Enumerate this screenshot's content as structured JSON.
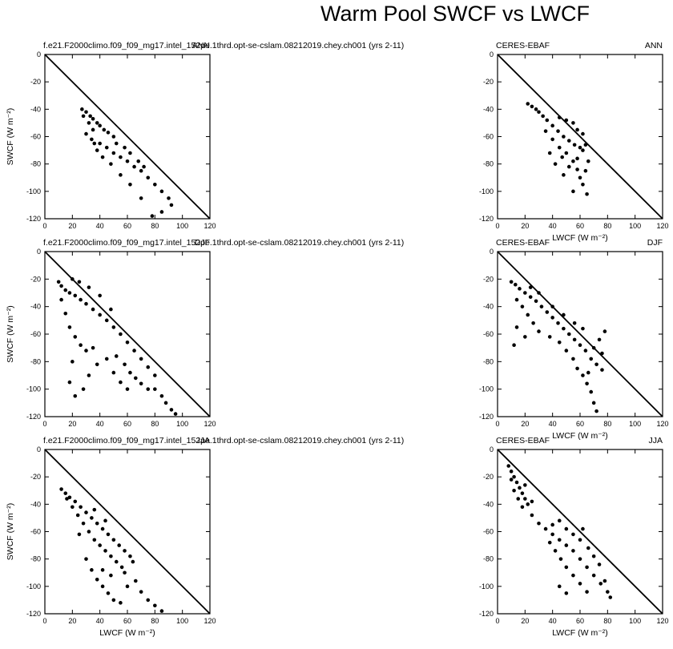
{
  "figure": {
    "title": "Warm Pool SWCF vs LWCF"
  },
  "axes": {
    "xlabel": "LWCF (W m⁻²)",
    "ylabel": "SWCF (W m⁻²)",
    "xlim": [
      0,
      120
    ],
    "ylim": [
      -120,
      0
    ],
    "xticks": [
      "0",
      "20",
      "40",
      "60",
      "80",
      "100",
      "120"
    ],
    "yticks": [
      "0",
      "-20",
      "-40",
      "-60",
      "-80",
      "-100",
      "-120"
    ],
    "reference_line": "y = -x"
  },
  "chart_data": [
    {
      "type": "scatter",
      "left_label": "f.e21.F2000climo.f09_f09_mg17.intel_152pe.1thrd.opt-se-cslam.08212019.chey.ch001 (yrs 2-11)",
      "right_label": "ANN",
      "xlim": [
        0,
        120
      ],
      "ylim": [
        -120,
        0
      ],
      "points": [
        [
          27,
          -40
        ],
        [
          30,
          -42
        ],
        [
          33,
          -45
        ],
        [
          35,
          -47
        ],
        [
          38,
          -50
        ],
        [
          40,
          -52
        ],
        [
          43,
          -55
        ],
        [
          46,
          -57
        ],
        [
          50,
          -60
        ],
        [
          28,
          -45
        ],
        [
          32,
          -50
        ],
        [
          35,
          -55
        ],
        [
          30,
          -58
        ],
        [
          34,
          -62
        ],
        [
          40,
          -65
        ],
        [
          45,
          -68
        ],
        [
          50,
          -72
        ],
        [
          55,
          -75
        ],
        [
          60,
          -78
        ],
        [
          65,
          -82
        ],
        [
          70,
          -85
        ],
        [
          75,
          -90
        ],
        [
          80,
          -95
        ],
        [
          85,
          -100
        ],
        [
          90,
          -105
        ],
        [
          92,
          -110
        ],
        [
          85,
          -115
        ],
        [
          78,
          -118
        ],
        [
          70,
          -105
        ],
        [
          62,
          -95
        ],
        [
          55,
          -88
        ],
        [
          48,
          -80
        ],
        [
          42,
          -75
        ],
        [
          38,
          -70
        ],
        [
          36,
          -65
        ],
        [
          52,
          -65
        ],
        [
          58,
          -68
        ],
        [
          62,
          -72
        ],
        [
          68,
          -78
        ],
        [
          72,
          -82
        ]
      ]
    },
    {
      "type": "scatter",
      "left_label": "CERES-EBAF",
      "right_label": "ANN",
      "xlim": [
        0,
        120
      ],
      "ylim": [
        -120,
        0
      ],
      "points": [
        [
          22,
          -36
        ],
        [
          25,
          -38
        ],
        [
          28,
          -40
        ],
        [
          30,
          -42
        ],
        [
          33,
          -45
        ],
        [
          36,
          -48
        ],
        [
          40,
          -52
        ],
        [
          44,
          -56
        ],
        [
          48,
          -60
        ],
        [
          52,
          -63
        ],
        [
          56,
          -66
        ],
        [
          60,
          -68
        ],
        [
          64,
          -66
        ],
        [
          62,
          -58
        ],
        [
          58,
          -55
        ],
        [
          55,
          -50
        ],
        [
          50,
          -48
        ],
        [
          45,
          -46
        ],
        [
          35,
          -56
        ],
        [
          40,
          -62
        ],
        [
          45,
          -68
        ],
        [
          50,
          -72
        ],
        [
          55,
          -78
        ],
        [
          58,
          -84
        ],
        [
          60,
          -90
        ],
        [
          62,
          -95
        ],
        [
          65,
          -102
        ],
        [
          55,
          -100
        ],
        [
          48,
          -88
        ],
        [
          42,
          -80
        ],
        [
          38,
          -72
        ],
        [
          66,
          -78
        ],
        [
          64,
          -85
        ],
        [
          62,
          -70
        ],
        [
          58,
          -76
        ],
        [
          52,
          -82
        ],
        [
          47,
          -75
        ]
      ]
    },
    {
      "type": "scatter",
      "left_label": "f.e21.F2000climo.f09_f09_mg17.intel_152pe.1thrd.opt-se-cslam.08212019.chey.ch001 (yrs 2-11)",
      "right_label": "DJF",
      "xlim": [
        0,
        120
      ],
      "ylim": [
        -120,
        0
      ],
      "points": [
        [
          10,
          -22
        ],
        [
          12,
          -25
        ],
        [
          15,
          -28
        ],
        [
          18,
          -30
        ],
        [
          22,
          -32
        ],
        [
          26,
          -35
        ],
        [
          30,
          -38
        ],
        [
          35,
          -42
        ],
        [
          40,
          -46
        ],
        [
          45,
          -50
        ],
        [
          50,
          -55
        ],
        [
          55,
          -60
        ],
        [
          60,
          -66
        ],
        [
          65,
          -72
        ],
        [
          70,
          -78
        ],
        [
          75,
          -84
        ],
        [
          80,
          -90
        ],
        [
          12,
          -35
        ],
        [
          15,
          -45
        ],
        [
          18,
          -55
        ],
        [
          22,
          -62
        ],
        [
          26,
          -68
        ],
        [
          30,
          -72
        ],
        [
          35,
          -70
        ],
        [
          20,
          -80
        ],
        [
          18,
          -95
        ],
        [
          22,
          -105
        ],
        [
          28,
          -100
        ],
        [
          32,
          -90
        ],
        [
          38,
          -82
        ],
        [
          45,
          -78
        ],
        [
          52,
          -76
        ],
        [
          58,
          -82
        ],
        [
          62,
          -88
        ],
        [
          66,
          -92
        ],
        [
          70,
          -96
        ],
        [
          75,
          -100
        ],
        [
          80,
          -100
        ],
        [
          85,
          -105
        ],
        [
          88,
          -110
        ],
        [
          92,
          -115
        ],
        [
          95,
          -118
        ],
        [
          60,
          -100
        ],
        [
          55,
          -95
        ],
        [
          50,
          -88
        ],
        [
          20,
          -20
        ],
        [
          25,
          -22
        ],
        [
          32,
          -26
        ],
        [
          40,
          -32
        ],
        [
          48,
          -42
        ]
      ]
    },
    {
      "type": "scatter",
      "left_label": "CERES-EBAF",
      "right_label": "DJF",
      "xlim": [
        0,
        120
      ],
      "ylim": [
        -120,
        0
      ],
      "points": [
        [
          10,
          -22
        ],
        [
          13,
          -24
        ],
        [
          16,
          -27
        ],
        [
          20,
          -30
        ],
        [
          24,
          -33
        ],
        [
          28,
          -36
        ],
        [
          32,
          -40
        ],
        [
          36,
          -44
        ],
        [
          40,
          -48
        ],
        [
          44,
          -52
        ],
        [
          48,
          -56
        ],
        [
          52,
          -60
        ],
        [
          56,
          -64
        ],
        [
          60,
          -68
        ],
        [
          64,
          -72
        ],
        [
          68,
          -78
        ],
        [
          72,
          -82
        ],
        [
          76,
          -86
        ],
        [
          14,
          -35
        ],
        [
          18,
          -40
        ],
        [
          22,
          -46
        ],
        [
          26,
          -52
        ],
        [
          14,
          -55
        ],
        [
          12,
          -68
        ],
        [
          20,
          -62
        ],
        [
          30,
          -58
        ],
        [
          38,
          -62
        ],
        [
          45,
          -66
        ],
        [
          50,
          -72
        ],
        [
          55,
          -78
        ],
        [
          58,
          -85
        ],
        [
          62,
          -90
        ],
        [
          65,
          -96
        ],
        [
          68,
          -102
        ],
        [
          70,
          -110
        ],
        [
          72,
          -116
        ],
        [
          66,
          -88
        ],
        [
          70,
          -70
        ],
        [
          74,
          -64
        ],
        [
          78,
          -58
        ],
        [
          76,
          -74
        ],
        [
          62,
          -56
        ],
        [
          56,
          -52
        ],
        [
          48,
          -46
        ],
        [
          40,
          -40
        ],
        [
          30,
          -30
        ],
        [
          24,
          -26
        ]
      ]
    },
    {
      "type": "scatter",
      "left_label": "f.e21.F2000climo.f09_f09_mg17.intel_152pe.1thrd.opt-se-cslam.08212019.chey.ch001 (yrs 2-11)",
      "right_label": "JJA",
      "xlim": [
        0,
        120
      ],
      "ylim": [
        -120,
        0
      ],
      "points": [
        [
          12,
          -29
        ],
        [
          15,
          -32
        ],
        [
          18,
          -35
        ],
        [
          22,
          -38
        ],
        [
          26,
          -42
        ],
        [
          30,
          -46
        ],
        [
          34,
          -50
        ],
        [
          38,
          -54
        ],
        [
          42,
          -58
        ],
        [
          46,
          -62
        ],
        [
          50,
          -66
        ],
        [
          54,
          -70
        ],
        [
          58,
          -74
        ],
        [
          62,
          -78
        ],
        [
          64,
          -82
        ],
        [
          16,
          -36
        ],
        [
          20,
          -42
        ],
        [
          24,
          -48
        ],
        [
          28,
          -54
        ],
        [
          32,
          -60
        ],
        [
          36,
          -66
        ],
        [
          40,
          -70
        ],
        [
          44,
          -74
        ],
        [
          48,
          -78
        ],
        [
          52,
          -82
        ],
        [
          56,
          -86
        ],
        [
          30,
          -80
        ],
        [
          34,
          -88
        ],
        [
          38,
          -95
        ],
        [
          42,
          -100
        ],
        [
          46,
          -105
        ],
        [
          50,
          -110
        ],
        [
          55,
          -112
        ],
        [
          60,
          -100
        ],
        [
          66,
          -96
        ],
        [
          70,
          -104
        ],
        [
          75,
          -110
        ],
        [
          80,
          -114
        ],
        [
          85,
          -118
        ],
        [
          25,
          -62
        ],
        [
          42,
          -88
        ],
        [
          48,
          -92
        ],
        [
          58,
          -90
        ],
        [
          36,
          -44
        ],
        [
          44,
          -52
        ]
      ]
    },
    {
      "type": "scatter",
      "left_label": "CERES-EBAF",
      "right_label": "JJA",
      "xlim": [
        0,
        120
      ],
      "ylim": [
        -120,
        0
      ],
      "points": [
        [
          8,
          -12
        ],
        [
          10,
          -16
        ],
        [
          12,
          -20
        ],
        [
          14,
          -24
        ],
        [
          16,
          -28
        ],
        [
          18,
          -32
        ],
        [
          20,
          -36
        ],
        [
          22,
          -40
        ],
        [
          10,
          -22
        ],
        [
          12,
          -30
        ],
        [
          15,
          -36
        ],
        [
          18,
          -42
        ],
        [
          25,
          -48
        ],
        [
          30,
          -54
        ],
        [
          35,
          -58
        ],
        [
          40,
          -62
        ],
        [
          45,
          -66
        ],
        [
          50,
          -70
        ],
        [
          55,
          -74
        ],
        [
          60,
          -80
        ],
        [
          65,
          -86
        ],
        [
          70,
          -92
        ],
        [
          75,
          -98
        ],
        [
          80,
          -104
        ],
        [
          82,
          -108
        ],
        [
          38,
          -68
        ],
        [
          42,
          -74
        ],
        [
          46,
          -80
        ],
        [
          50,
          -86
        ],
        [
          55,
          -92
        ],
        [
          60,
          -98
        ],
        [
          45,
          -100
        ],
        [
          50,
          -105
        ],
        [
          40,
          -55
        ],
        [
          45,
          -52
        ],
        [
          50,
          -58
        ],
        [
          55,
          -62
        ],
        [
          60,
          -66
        ],
        [
          62,
          -58
        ],
        [
          66,
          -72
        ],
        [
          70,
          -78
        ],
        [
          74,
          -84
        ],
        [
          78,
          -96
        ],
        [
          65,
          -104
        ],
        [
          20,
          -26
        ],
        [
          25,
          -38
        ]
      ]
    }
  ]
}
